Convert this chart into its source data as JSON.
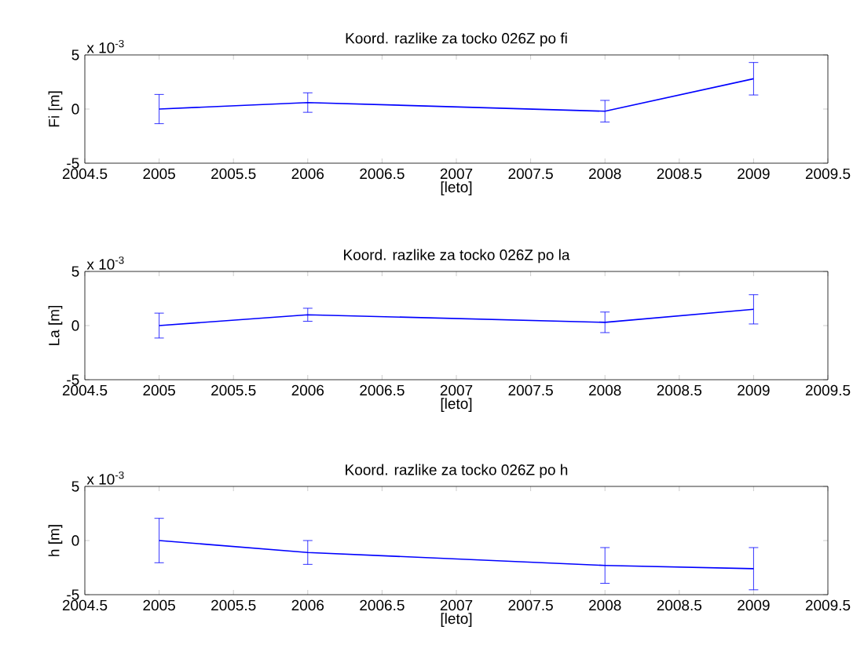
{
  "chart_data": [
    {
      "type": "line",
      "title": "Koord. razlike za tocko 026Z po fi",
      "xlabel": "[leto]",
      "ylabel": "Fi [m]",
      "annotations": [
        "x 10$^{-3}$"
      ],
      "x": [
        2005,
        2006,
        2008,
        2009
      ],
      "series": [
        {
          "color": "#0000ff",
          "values": [
            0,
            0.6,
            -0.2,
            2.8
          ],
          "errors": [
            1.35,
            0.9,
            1.0,
            1.5
          ]
        }
      ],
      "xlim": [
        2004.5,
        2009.5
      ],
      "xticks": [
        2004.5,
        2005,
        2005.5,
        2006,
        2006.5,
        2007,
        2007.5,
        2008,
        2008.5,
        2009,
        2009.5
      ],
      "ylim": [
        -5,
        5
      ],
      "yticks": [
        -5,
        0,
        5
      ]
    },
    {
      "type": "line",
      "title": "Koord. razlike za tocko 026Z po la",
      "xlabel": "[leto]",
      "ylabel": "La [m]",
      "annotations": [
        "x 10$^{-3}$"
      ],
      "x": [
        2005,
        2006,
        2008,
        2009
      ],
      "series": [
        {
          "color": "#0000ff",
          "values": [
            0,
            1.0,
            0.3,
            1.5
          ],
          "errors": [
            1.15,
            0.6,
            0.95,
            1.35
          ]
        }
      ],
      "xlim": [
        2004.5,
        2009.5
      ],
      "xticks": [
        2004.5,
        2005,
        2005.5,
        2006,
        2006.5,
        2007,
        2007.5,
        2008,
        2008.5,
        2009,
        2009.5
      ],
      "ylim": [
        -5,
        5
      ],
      "yticks": [
        -5,
        0,
        5
      ]
    },
    {
      "type": "line",
      "title": "Koord. razlike za tocko 026Z po h",
      "xlabel": "[leto]",
      "ylabel": "h [m]",
      "annotations": [
        "x 10$^{-3}$"
      ],
      "x": [
        2005,
        2006,
        2008,
        2009
      ],
      "series": [
        {
          "color": "#0000ff",
          "values": [
            0,
            -1.1,
            -2.3,
            -2.6
          ],
          "errors": [
            2.05,
            1.1,
            1.65,
            1.95
          ]
        }
      ],
      "xlim": [
        2004.5,
        2009.5
      ],
      "xticks": [
        2004.5,
        2005,
        2005.5,
        2006,
        2006.5,
        2007,
        2007.5,
        2008,
        2008.5,
        2009,
        2009.5
      ],
      "ylim": [
        -5,
        5
      ],
      "yticks": [
        -5,
        0,
        5
      ]
    }
  ]
}
